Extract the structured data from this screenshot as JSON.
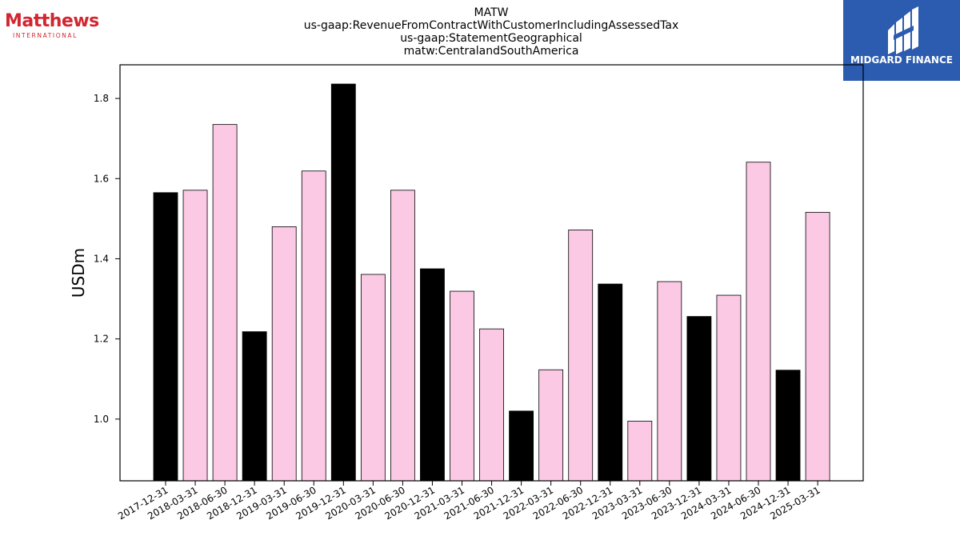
{
  "logos": {
    "left_brand": "Matthews",
    "left_sub": "INTERNATIONAL",
    "right_brand": "MIDGARD FINANCE"
  },
  "colors": {
    "bar_primary": "#000000",
    "bar_secondary": "#fbc9e4",
    "bar_edge": "#000000",
    "logo_left": "#d22630",
    "logo_right_bg": "#2b5cb0"
  },
  "chart_data": {
    "type": "bar",
    "title_lines": [
      "MATW",
      "us-gaap:RevenueFromContractWithCustomerIncludingAssessedTax",
      "us-gaap:StatementGeographical",
      "matw:CentralandSouthAmerica"
    ],
    "xlabel": "",
    "ylabel": "USDm",
    "ylim": [
      0.846,
      1.884
    ],
    "yticks": [
      "1.0",
      "1.2",
      "1.4",
      "1.6",
      "1.8"
    ],
    "ytick_values": [
      1.0,
      1.2,
      1.4,
      1.6,
      1.8
    ],
    "grid": false,
    "categories": [
      "2017-12-31",
      "2018-03-31",
      "2018-06-30",
      "2018-12-31",
      "2019-03-31",
      "2019-06-30",
      "2019-12-31",
      "2020-03-31",
      "2020-06-30",
      "2020-12-31",
      "2021-03-31",
      "2021-06-30",
      "2021-12-31",
      "2022-03-31",
      "2022-06-30",
      "2022-12-31",
      "2023-03-31",
      "2023-06-30",
      "2023-12-31",
      "2024-03-31",
      "2024-06-30",
      "2024-12-31",
      "2025-03-31"
    ],
    "values": [
      1.565,
      1.571,
      1.735,
      1.218,
      1.48,
      1.619,
      1.836,
      1.361,
      1.571,
      1.375,
      1.319,
      1.225,
      1.02,
      1.123,
      1.472,
      1.337,
      0.995,
      1.343,
      1.256,
      1.309,
      1.641,
      1.122,
      1.516
    ],
    "bar_colors": [
      "#000000",
      "#fbc9e4",
      "#fbc9e4",
      "#000000",
      "#fbc9e4",
      "#fbc9e4",
      "#000000",
      "#fbc9e4",
      "#fbc9e4",
      "#000000",
      "#fbc9e4",
      "#fbc9e4",
      "#000000",
      "#fbc9e4",
      "#fbc9e4",
      "#000000",
      "#fbc9e4",
      "#fbc9e4",
      "#000000",
      "#fbc9e4",
      "#fbc9e4",
      "#000000",
      "#fbc9e4"
    ]
  }
}
